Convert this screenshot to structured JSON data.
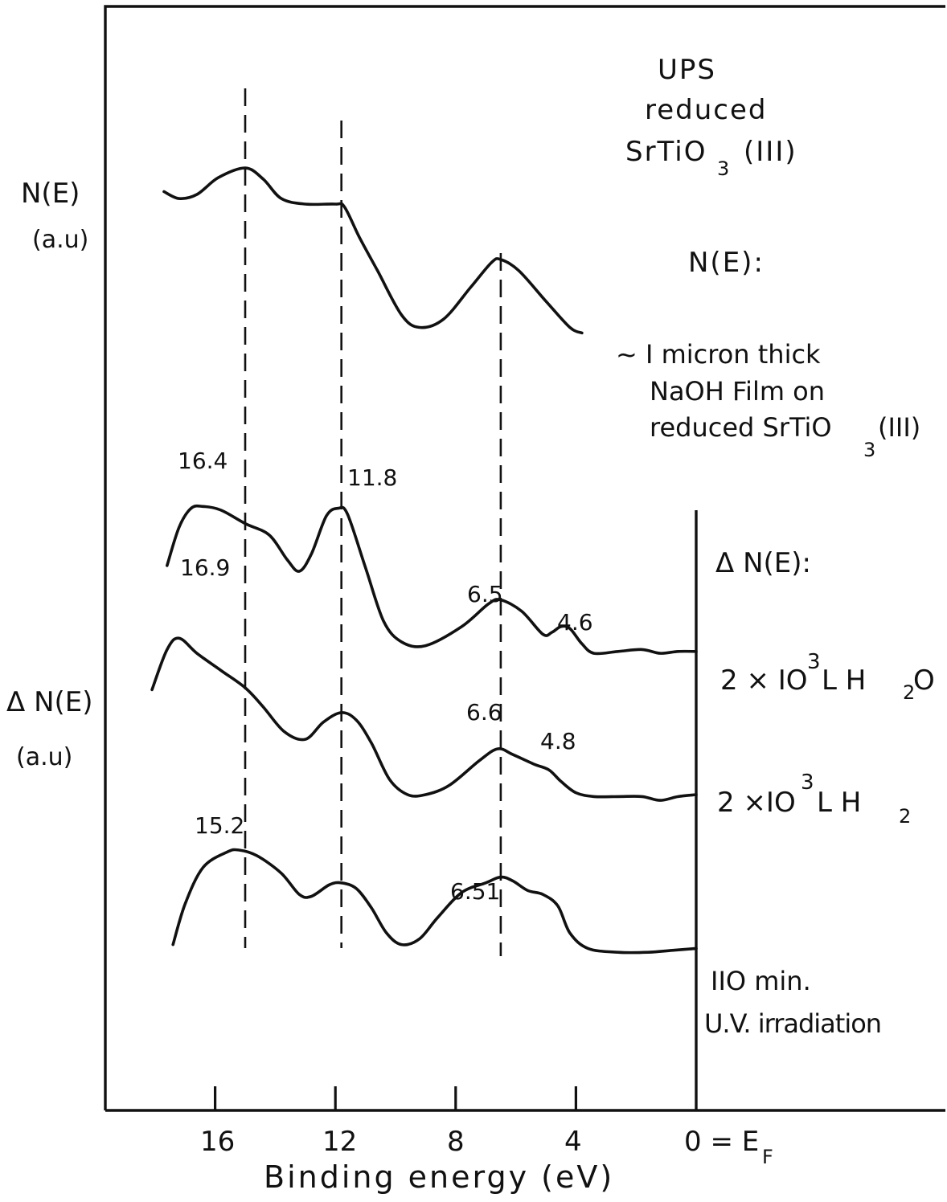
{
  "chart_data": {
    "type": "line",
    "title_lines": [
      "UPS",
      "reduced",
      "SrTiO",
      "(III)"
    ],
    "xlabel": "Binding energy (eV)",
    "x_reversed": true,
    "xlim": [
      18.3,
      -8
    ],
    "ylabels": {
      "top": [
        "N(E)",
        "(a.u)"
      ],
      "bottom": [
        "Δ N(E)",
        "(a.u)"
      ]
    },
    "xticks": [
      {
        "value": 16,
        "label": "16"
      },
      {
        "value": 12,
        "label": "12"
      },
      {
        "value": 8,
        "label": "8"
      },
      {
        "value": 4,
        "label": "4"
      },
      {
        "value": 0,
        "label": "0 = E"
      }
    ],
    "ef_subscript": "F",
    "dashed_lines_ev": [
      15,
      11.8,
      6.5
    ],
    "section_labels": {
      "ne": "N(E):",
      "dne": "Δ N(E):"
    },
    "film_note": [
      "~ I micron thick",
      "NaOH Film on",
      "reduced SrTiO",
      "(III)"
    ],
    "subscript_3": "3",
    "series": [
      {
        "name": "N(E) NaOH film",
        "points": [
          [
            17.7,
            8.45
          ],
          [
            17.2,
            8.2
          ],
          [
            16.6,
            8.35
          ],
          [
            15.9,
            8.95
          ],
          [
            15.0,
            9.3
          ],
          [
            14.4,
            8.9
          ],
          [
            13.8,
            8.2
          ],
          [
            13.0,
            8.0
          ],
          [
            12.0,
            8.0
          ],
          [
            11.7,
            7.9
          ],
          [
            11.2,
            6.8
          ],
          [
            10.6,
            5.6
          ],
          [
            9.8,
            4.0
          ],
          [
            9.2,
            3.55
          ],
          [
            8.4,
            3.85
          ],
          [
            7.5,
            5.0
          ],
          [
            6.8,
            5.9
          ],
          [
            6.5,
            6.0
          ],
          [
            5.9,
            5.6
          ],
          [
            5.0,
            4.5
          ],
          [
            4.2,
            3.55
          ],
          [
            3.8,
            3.35
          ]
        ]
      },
      {
        "name": "2×10³ L H₂O",
        "label_parts": [
          "2 × IO",
          "3",
          " L  H",
          "2",
          "O"
        ],
        "points": [
          [
            17.6,
            4.55
          ],
          [
            17.2,
            5.55
          ],
          [
            16.8,
            6.05
          ],
          [
            16.4,
            6.1
          ],
          [
            15.8,
            6.0
          ],
          [
            15.0,
            5.65
          ],
          [
            14.2,
            5.35
          ],
          [
            13.6,
            4.7
          ],
          [
            13.2,
            4.4
          ],
          [
            12.8,
            4.85
          ],
          [
            12.3,
            5.85
          ],
          [
            11.9,
            6.05
          ],
          [
            11.6,
            5.9
          ],
          [
            11.0,
            4.5
          ],
          [
            10.4,
            3.1
          ],
          [
            9.8,
            2.55
          ],
          [
            9.0,
            2.45
          ],
          [
            7.8,
            2.95
          ],
          [
            6.9,
            3.55
          ],
          [
            6.5,
            3.65
          ],
          [
            5.8,
            3.35
          ],
          [
            5.1,
            2.75
          ],
          [
            4.8,
            2.8
          ],
          [
            4.5,
            2.95
          ],
          [
            4.2,
            2.9
          ],
          [
            3.8,
            2.5
          ],
          [
            3.4,
            2.25
          ],
          [
            2.6,
            2.3
          ],
          [
            1.8,
            2.35
          ],
          [
            1.2,
            2.25
          ],
          [
            0.6,
            2.3
          ],
          [
            0.0,
            2.3
          ]
        ]
      },
      {
        "name": "2×10³ L H₂",
        "label_parts": [
          "2 ×IO",
          "3",
          " L  H",
          "2",
          ""
        ],
        "points": [
          [
            18.1,
            4.75
          ],
          [
            17.6,
            5.8
          ],
          [
            17.2,
            6.1
          ],
          [
            16.6,
            5.7
          ],
          [
            15.8,
            5.25
          ],
          [
            15.0,
            4.8
          ],
          [
            14.4,
            4.3
          ],
          [
            13.7,
            3.65
          ],
          [
            13.0,
            3.45
          ],
          [
            12.4,
            3.9
          ],
          [
            11.8,
            4.15
          ],
          [
            11.3,
            3.95
          ],
          [
            10.8,
            3.35
          ],
          [
            10.2,
            2.4
          ],
          [
            9.6,
            2.0
          ],
          [
            9.0,
            2.0
          ],
          [
            8.2,
            2.25
          ],
          [
            7.2,
            2.9
          ],
          [
            6.6,
            3.2
          ],
          [
            6.1,
            3.05
          ],
          [
            5.4,
            2.8
          ],
          [
            4.9,
            2.65
          ],
          [
            4.5,
            2.35
          ],
          [
            4.0,
            2.05
          ],
          [
            3.4,
            1.95
          ],
          [
            2.6,
            1.95
          ],
          [
            1.8,
            1.95
          ],
          [
            1.2,
            1.85
          ],
          [
            0.6,
            1.95
          ],
          [
            0.0,
            2.0
          ]
        ]
      },
      {
        "name": "110 min. U.V. irradiation",
        "label_parts": [
          "IIO min.",
          "U.V. irradiation"
        ],
        "points": [
          [
            17.4,
            1.55
          ],
          [
            17.0,
            2.6
          ],
          [
            16.4,
            3.55
          ],
          [
            15.6,
            3.95
          ],
          [
            15.2,
            4.0
          ],
          [
            14.6,
            3.85
          ],
          [
            13.8,
            3.4
          ],
          [
            13.2,
            2.85
          ],
          [
            12.8,
            2.8
          ],
          [
            12.2,
            3.1
          ],
          [
            11.8,
            3.15
          ],
          [
            11.3,
            3.0
          ],
          [
            10.8,
            2.5
          ],
          [
            10.3,
            1.85
          ],
          [
            9.8,
            1.55
          ],
          [
            9.2,
            1.7
          ],
          [
            8.6,
            2.25
          ],
          [
            7.8,
            2.9
          ],
          [
            7.0,
            3.15
          ],
          [
            6.5,
            3.3
          ],
          [
            6.1,
            3.2
          ],
          [
            5.6,
            2.95
          ],
          [
            5.1,
            2.85
          ],
          [
            4.6,
            2.55
          ],
          [
            4.2,
            1.85
          ],
          [
            3.6,
            1.45
          ],
          [
            2.6,
            1.35
          ],
          [
            1.6,
            1.35
          ],
          [
            0.8,
            1.4
          ],
          [
            0.0,
            1.45
          ]
        ]
      }
    ],
    "annotations": [
      {
        "text": "16.4",
        "series": 1
      },
      {
        "text": "11.8",
        "series": 1
      },
      {
        "text": "6.5",
        "series": 1
      },
      {
        "text": "4.6",
        "series": 1
      },
      {
        "text": "16.9",
        "series": 2
      },
      {
        "text": "6.6",
        "series": 2
      },
      {
        "text": "4.8",
        "series": 2
      },
      {
        "text": "15.2",
        "series": 3
      },
      {
        "text": "6.51",
        "series": 3
      }
    ],
    "grid": false,
    "legend": "none"
  }
}
